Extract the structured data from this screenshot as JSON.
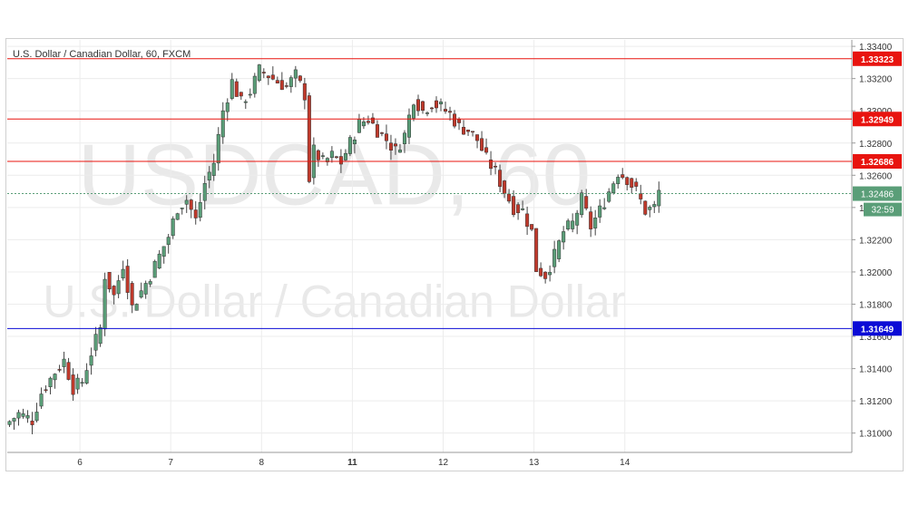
{
  "chart_data": {
    "type": "candlestick",
    "title": "U.S. Dollar / Canadian Dollar, 60, FXCM",
    "watermark": {
      "symbol": "USDCAD, 60",
      "name": "U.S. Dollar / Canadian Dollar"
    },
    "ylim": [
      1.3088,
      1.3344
    ],
    "y_ticks": [
      "1.31000",
      "1.31200",
      "1.31400",
      "1.31600",
      "1.31800",
      "1.32000",
      "1.32200",
      "1.32400",
      "1.32600",
      "1.32800",
      "1.33000",
      "1.33200",
      "1.33400"
    ],
    "x_range": [
      5.2,
      14.5
    ],
    "x_ticks": [
      {
        "pos": 6,
        "label": "6"
      },
      {
        "pos": 7,
        "label": "7"
      },
      {
        "pos": 8,
        "label": "8"
      },
      {
        "pos": 9,
        "label": "11"
      },
      {
        "pos": 10,
        "label": "12"
      },
      {
        "pos": 11,
        "label": "13"
      },
      {
        "pos": 12,
        "label": "14"
      }
    ],
    "grid": true,
    "levels": [
      {
        "value": 1.33323,
        "label": "1.33323",
        "color": "#e8140f"
      },
      {
        "value": 1.32949,
        "label": "1.32949",
        "color": "#e8140f"
      },
      {
        "value": 1.32686,
        "label": "1.32686",
        "color": "#e8140f"
      },
      {
        "value": 1.31649,
        "label": "1.31649",
        "color": "#0b0bd6"
      }
    ],
    "last_price": {
      "value": 1.32486,
      "label": "1.32486",
      "countdown": "32:59",
      "color": "#5a9e78"
    },
    "colors": {
      "up": "#5a9e78",
      "down": "#c0392b",
      "wick": "#444444"
    },
    "candles_path": [
      [
        5.2,
        1.3105
      ],
      [
        5.35,
        1.3112
      ],
      [
        5.5,
        1.3108
      ],
      [
        5.6,
        1.3125
      ],
      [
        5.75,
        1.3138
      ],
      [
        5.85,
        1.3145
      ],
      [
        5.95,
        1.3128
      ],
      [
        6.05,
        1.3132
      ],
      [
        6.15,
        1.315
      ],
      [
        6.25,
        1.3165
      ],
      [
        6.3,
        1.3198
      ],
      [
        6.4,
        1.3185
      ],
      [
        6.5,
        1.3205
      ],
      [
        6.6,
        1.3178
      ],
      [
        6.7,
        1.3188
      ],
      [
        6.8,
        1.3198
      ],
      [
        6.9,
        1.321
      ],
      [
        7.0,
        1.3222
      ],
      [
        7.1,
        1.324
      ],
      [
        7.2,
        1.3245
      ],
      [
        7.3,
        1.3232
      ],
      [
        7.4,
        1.3255
      ],
      [
        7.5,
        1.3268
      ],
      [
        7.6,
        1.33
      ],
      [
        7.7,
        1.3318
      ],
      [
        7.8,
        1.3305
      ],
      [
        7.9,
        1.3312
      ],
      [
        8.0,
        1.3325
      ],
      [
        8.1,
        1.3322
      ],
      [
        8.2,
        1.3318
      ],
      [
        8.3,
        1.3315
      ],
      [
        8.4,
        1.3322
      ],
      [
        8.5,
        1.331
      ],
      [
        8.55,
        1.3258
      ],
      [
        8.6,
        1.3275
      ],
      [
        8.7,
        1.3268
      ],
      [
        8.8,
        1.3272
      ],
      [
        8.9,
        1.3268
      ],
      [
        9.0,
        1.328
      ],
      [
        9.1,
        1.3292
      ],
      [
        9.2,
        1.3295
      ],
      [
        9.3,
        1.3288
      ],
      [
        9.4,
        1.3282
      ],
      [
        9.5,
        1.3275
      ],
      [
        9.6,
        1.3285
      ],
      [
        9.7,
        1.3308
      ],
      [
        9.8,
        1.33
      ],
      [
        9.9,
        1.3305
      ],
      [
        10.0,
        1.3302
      ],
      [
        10.1,
        1.3298
      ],
      [
        10.2,
        1.329
      ],
      [
        10.3,
        1.3288
      ],
      [
        10.4,
        1.3282
      ],
      [
        10.5,
        1.327
      ],
      [
        10.6,
        1.3262
      ],
      [
        10.7,
        1.325
      ],
      [
        10.8,
        1.324
      ],
      [
        10.9,
        1.3238
      ],
      [
        11.0,
        1.3225
      ],
      [
        11.05,
        1.3202
      ],
      [
        11.15,
        1.3198
      ],
      [
        11.25,
        1.321
      ],
      [
        11.35,
        1.3225
      ],
      [
        11.45,
        1.323
      ],
      [
        11.55,
        1.3245
      ],
      [
        11.65,
        1.3228
      ],
      [
        11.75,
        1.3238
      ],
      [
        11.85,
        1.325
      ],
      [
        11.95,
        1.3262
      ],
      [
        12.05,
        1.3258
      ],
      [
        12.15,
        1.325
      ],
      [
        12.25,
        1.3238
      ],
      [
        12.35,
        1.324
      ],
      [
        12.4,
        1.325
      ]
    ]
  }
}
